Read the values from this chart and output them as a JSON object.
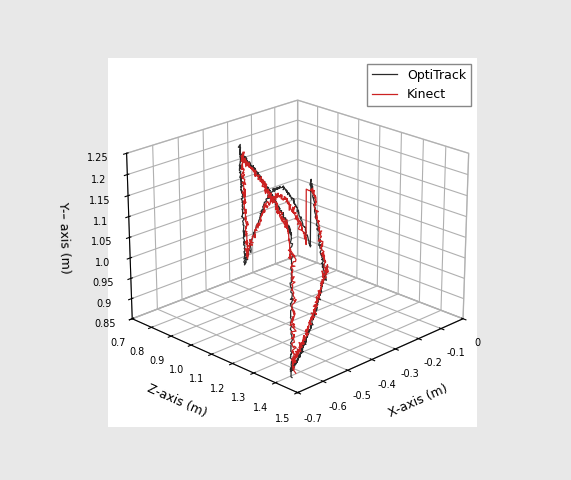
{
  "xlabel": "X-axis (m)",
  "ylabel": "Z-axis (m)",
  "zlabel": "Y-– axis (m)",
  "legend_labels": [
    "OptiTrack",
    "Kinect"
  ],
  "line_colors": [
    "#2a2a2a",
    "#cc2222"
  ],
  "xlim": [
    -0.7,
    0.0
  ],
  "ylim": [
    0.7,
    1.5
  ],
  "zlim": [
    0.85,
    1.25
  ],
  "xticks": [
    -0.7,
    -0.6,
    -0.5,
    -0.4,
    -0.3,
    -0.2,
    -0.1,
    0.0
  ],
  "yticks": [
    0.7,
    0.8,
    0.9,
    1.0,
    1.1,
    1.2,
    1.3,
    1.4,
    1.5
  ],
  "zticks": [
    0.85,
    0.9,
    0.95,
    1.0,
    1.05,
    1.1,
    1.15,
    1.2,
    1.25
  ],
  "background_color": "#ffffff",
  "pane_color": "#ffffff",
  "grid_color": "#aaaaaa",
  "elev": 22,
  "azim": 225
}
